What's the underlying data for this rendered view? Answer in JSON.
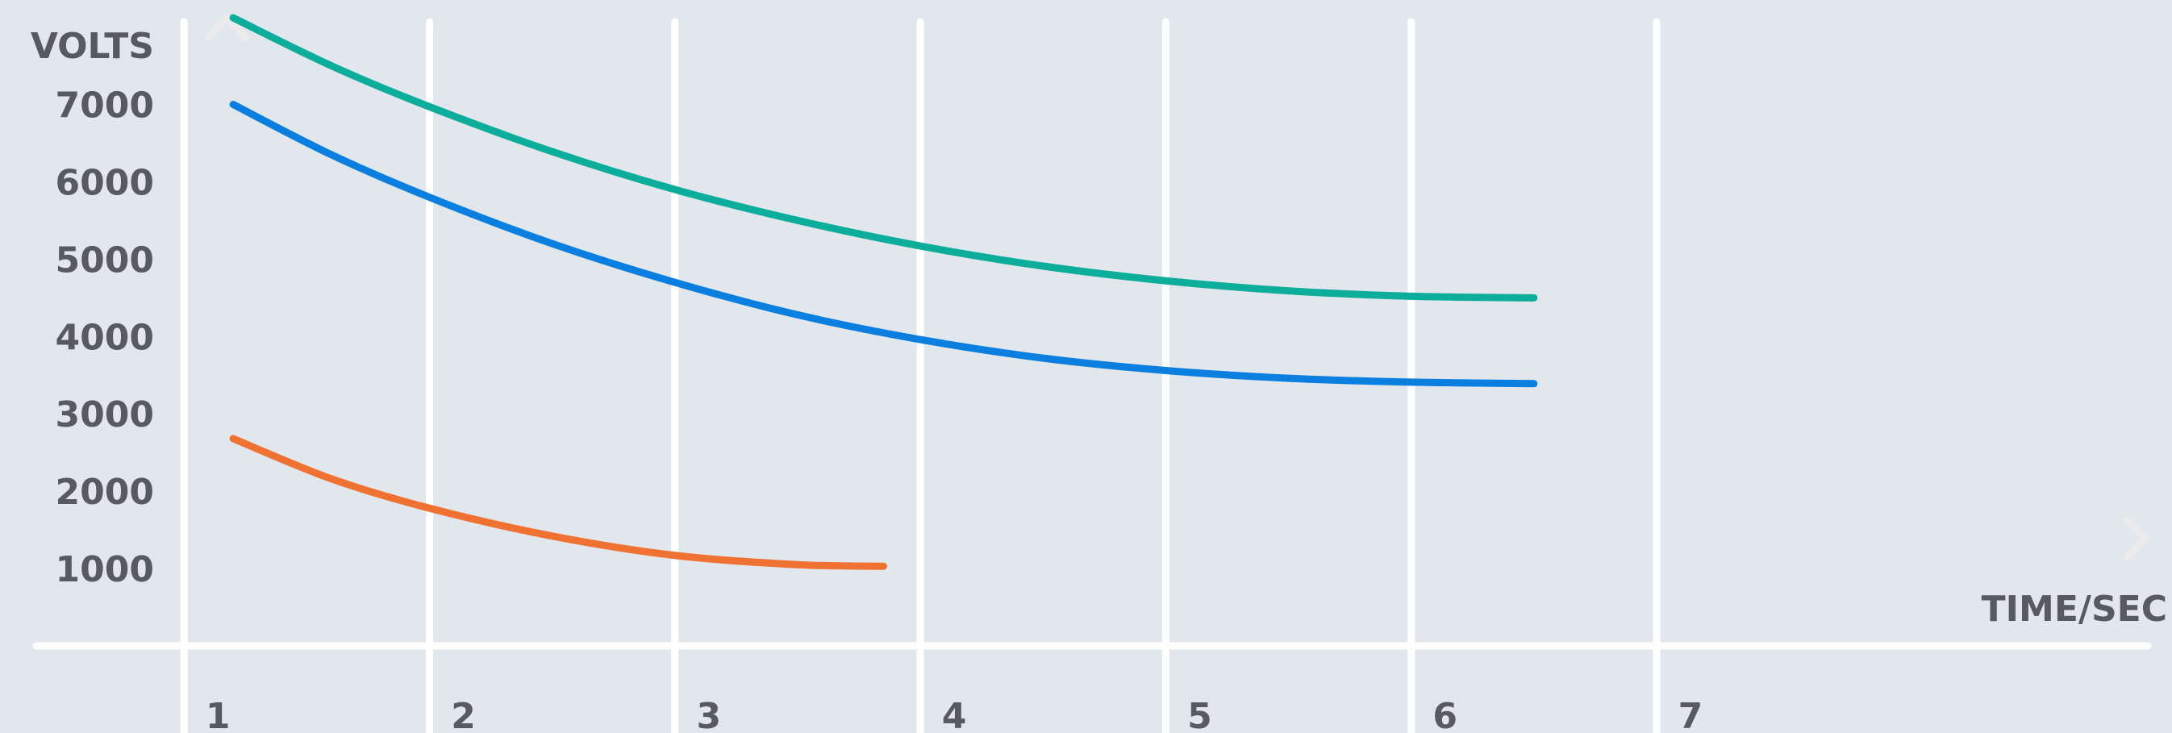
{
  "chart_data": {
    "type": "line",
    "xlabel": "TIME/SEC",
    "ylabel": "VOLTS",
    "x_ticks": [
      "1",
      "2",
      "3",
      "4",
      "5",
      "6",
      "7"
    ],
    "y_ticks": [
      "1000",
      "2000",
      "3000",
      "4000",
      "5000",
      "6000",
      "7000"
    ],
    "xlim": [
      0.25,
      9.1
    ],
    "ylim": [
      0,
      8350
    ],
    "grid": "vertical",
    "series": [
      {
        "color": "#0dad9b",
        "x": [
          1.2,
          1.6,
          2.0,
          2.5,
          3.0,
          3.5,
          4.0,
          4.5,
          5.0,
          5.5,
          6.0,
          6.5
        ],
        "y": [
          8120,
          7500,
          6970,
          6390,
          5900,
          5500,
          5170,
          4910,
          4720,
          4590,
          4520,
          4500
        ]
      },
      {
        "color": "#0a7fe0",
        "x": [
          1.2,
          1.6,
          2.0,
          2.5,
          3.0,
          3.5,
          4.0,
          4.5,
          5.0,
          5.5,
          6.0,
          6.5
        ],
        "y": [
          7000,
          6350,
          5800,
          5200,
          4700,
          4280,
          3960,
          3720,
          3560,
          3460,
          3410,
          3390
        ]
      },
      {
        "color": "#f07232",
        "x": [
          1.2,
          1.6,
          2.0,
          2.5,
          3.0,
          3.5,
          3.85
        ],
        "y": [
          2680,
          2160,
          1780,
          1420,
          1170,
          1050,
          1030
        ]
      }
    ]
  }
}
